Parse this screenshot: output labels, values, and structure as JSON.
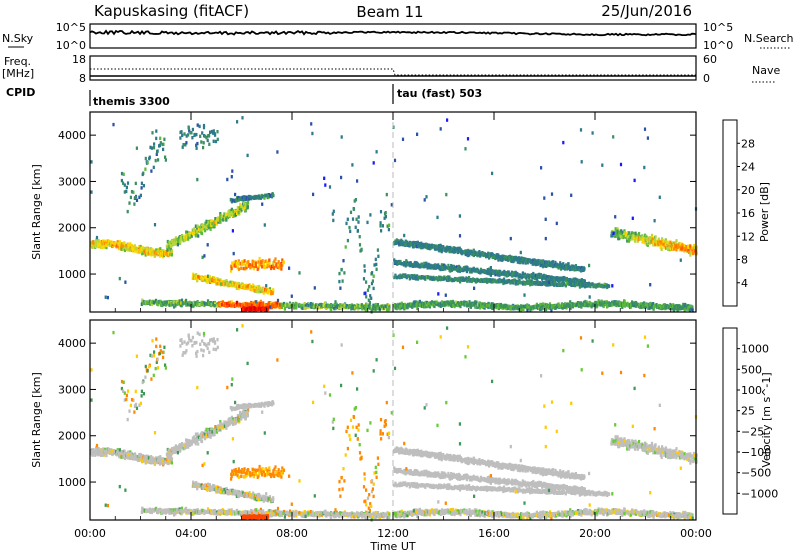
{
  "header": {
    "title": "Kapuskasing (fitACF)",
    "beam": "Beam 11",
    "date": "25/Jun/2016"
  },
  "noise_panel": {
    "left_label": "N.Sky",
    "right_label": "N.Search",
    "left_ticks": [
      "10^5",
      "10^0"
    ],
    "right_ticks": [
      "10^5",
      "10^0"
    ]
  },
  "freq_panel": {
    "left_label_line1": "Freq.",
    "left_label_line2": "[MHz]",
    "left_ticks": [
      "18",
      "8"
    ],
    "right_label": "Nave",
    "right_ticks": [
      "60",
      "0"
    ]
  },
  "cpid": {
    "label": "CPID",
    "segments": [
      {
        "label": "themis 3300",
        "start_hour": 0
      },
      {
        "label": "tau (fast) 503",
        "start_hour": 12
      }
    ]
  },
  "time_axis": {
    "title": "Time UT",
    "range_hours": [
      0,
      24
    ],
    "ticks": [
      {
        "label": "00:00",
        "hour": 0
      },
      {
        "label": "04:00",
        "hour": 4
      },
      {
        "label": "08:00",
        "hour": 8
      },
      {
        "label": "12:00",
        "hour": 12
      },
      {
        "label": "16:00",
        "hour": 16
      },
      {
        "label": "20:00",
        "hour": 20
      },
      {
        "label": "00:00",
        "hour": 24
      }
    ]
  },
  "chart_data": [
    {
      "type": "heatmap",
      "ylabel": "Slant Range [km]",
      "ylim": [
        180,
        4500
      ],
      "yticks": [
        "1000",
        "2000",
        "3000",
        "4000"
      ],
      "ytick_values": [
        1000,
        2000,
        3000,
        4000
      ],
      "colorbar": {
        "label": "Power [dB]",
        "ticks": [
          "4",
          "8",
          "12",
          "16",
          "20",
          "24",
          "28"
        ],
        "tick_values": [
          4,
          8,
          12,
          16,
          20,
          24,
          28
        ],
        "range": [
          0,
          32
        ],
        "colors": [
          "#1a1aff",
          "#2a52a8",
          "#2d7a8a",
          "#3a9060",
          "#5cb83a",
          "#b8d63a",
          "#ffd700",
          "#ff8c00",
          "#ff5a00",
          "#ff2000",
          "#dd0000"
        ]
      }
    },
    {
      "type": "heatmap",
      "ylabel": "Slant Range [km]",
      "ylim": [
        180,
        4500
      ],
      "yticks": [
        "1000",
        "2000",
        "3000",
        "4000"
      ],
      "ytick_values": [
        1000,
        2000,
        3000,
        4000
      ],
      "colorbar": {
        "label": "Velocity [m s^-1]",
        "ticks": [
          "1000",
          "500",
          "100",
          "25",
          "−25",
          "−100",
          "−500",
          "−1000"
        ],
        "colors": [
          "#2233bb",
          "#2e7fa0",
          "#3d9a55",
          "#66cc33",
          "#bebebe",
          "#ffcc00",
          "#ff8800",
          "#ff4400",
          "#dd0000"
        ]
      }
    }
  ]
}
